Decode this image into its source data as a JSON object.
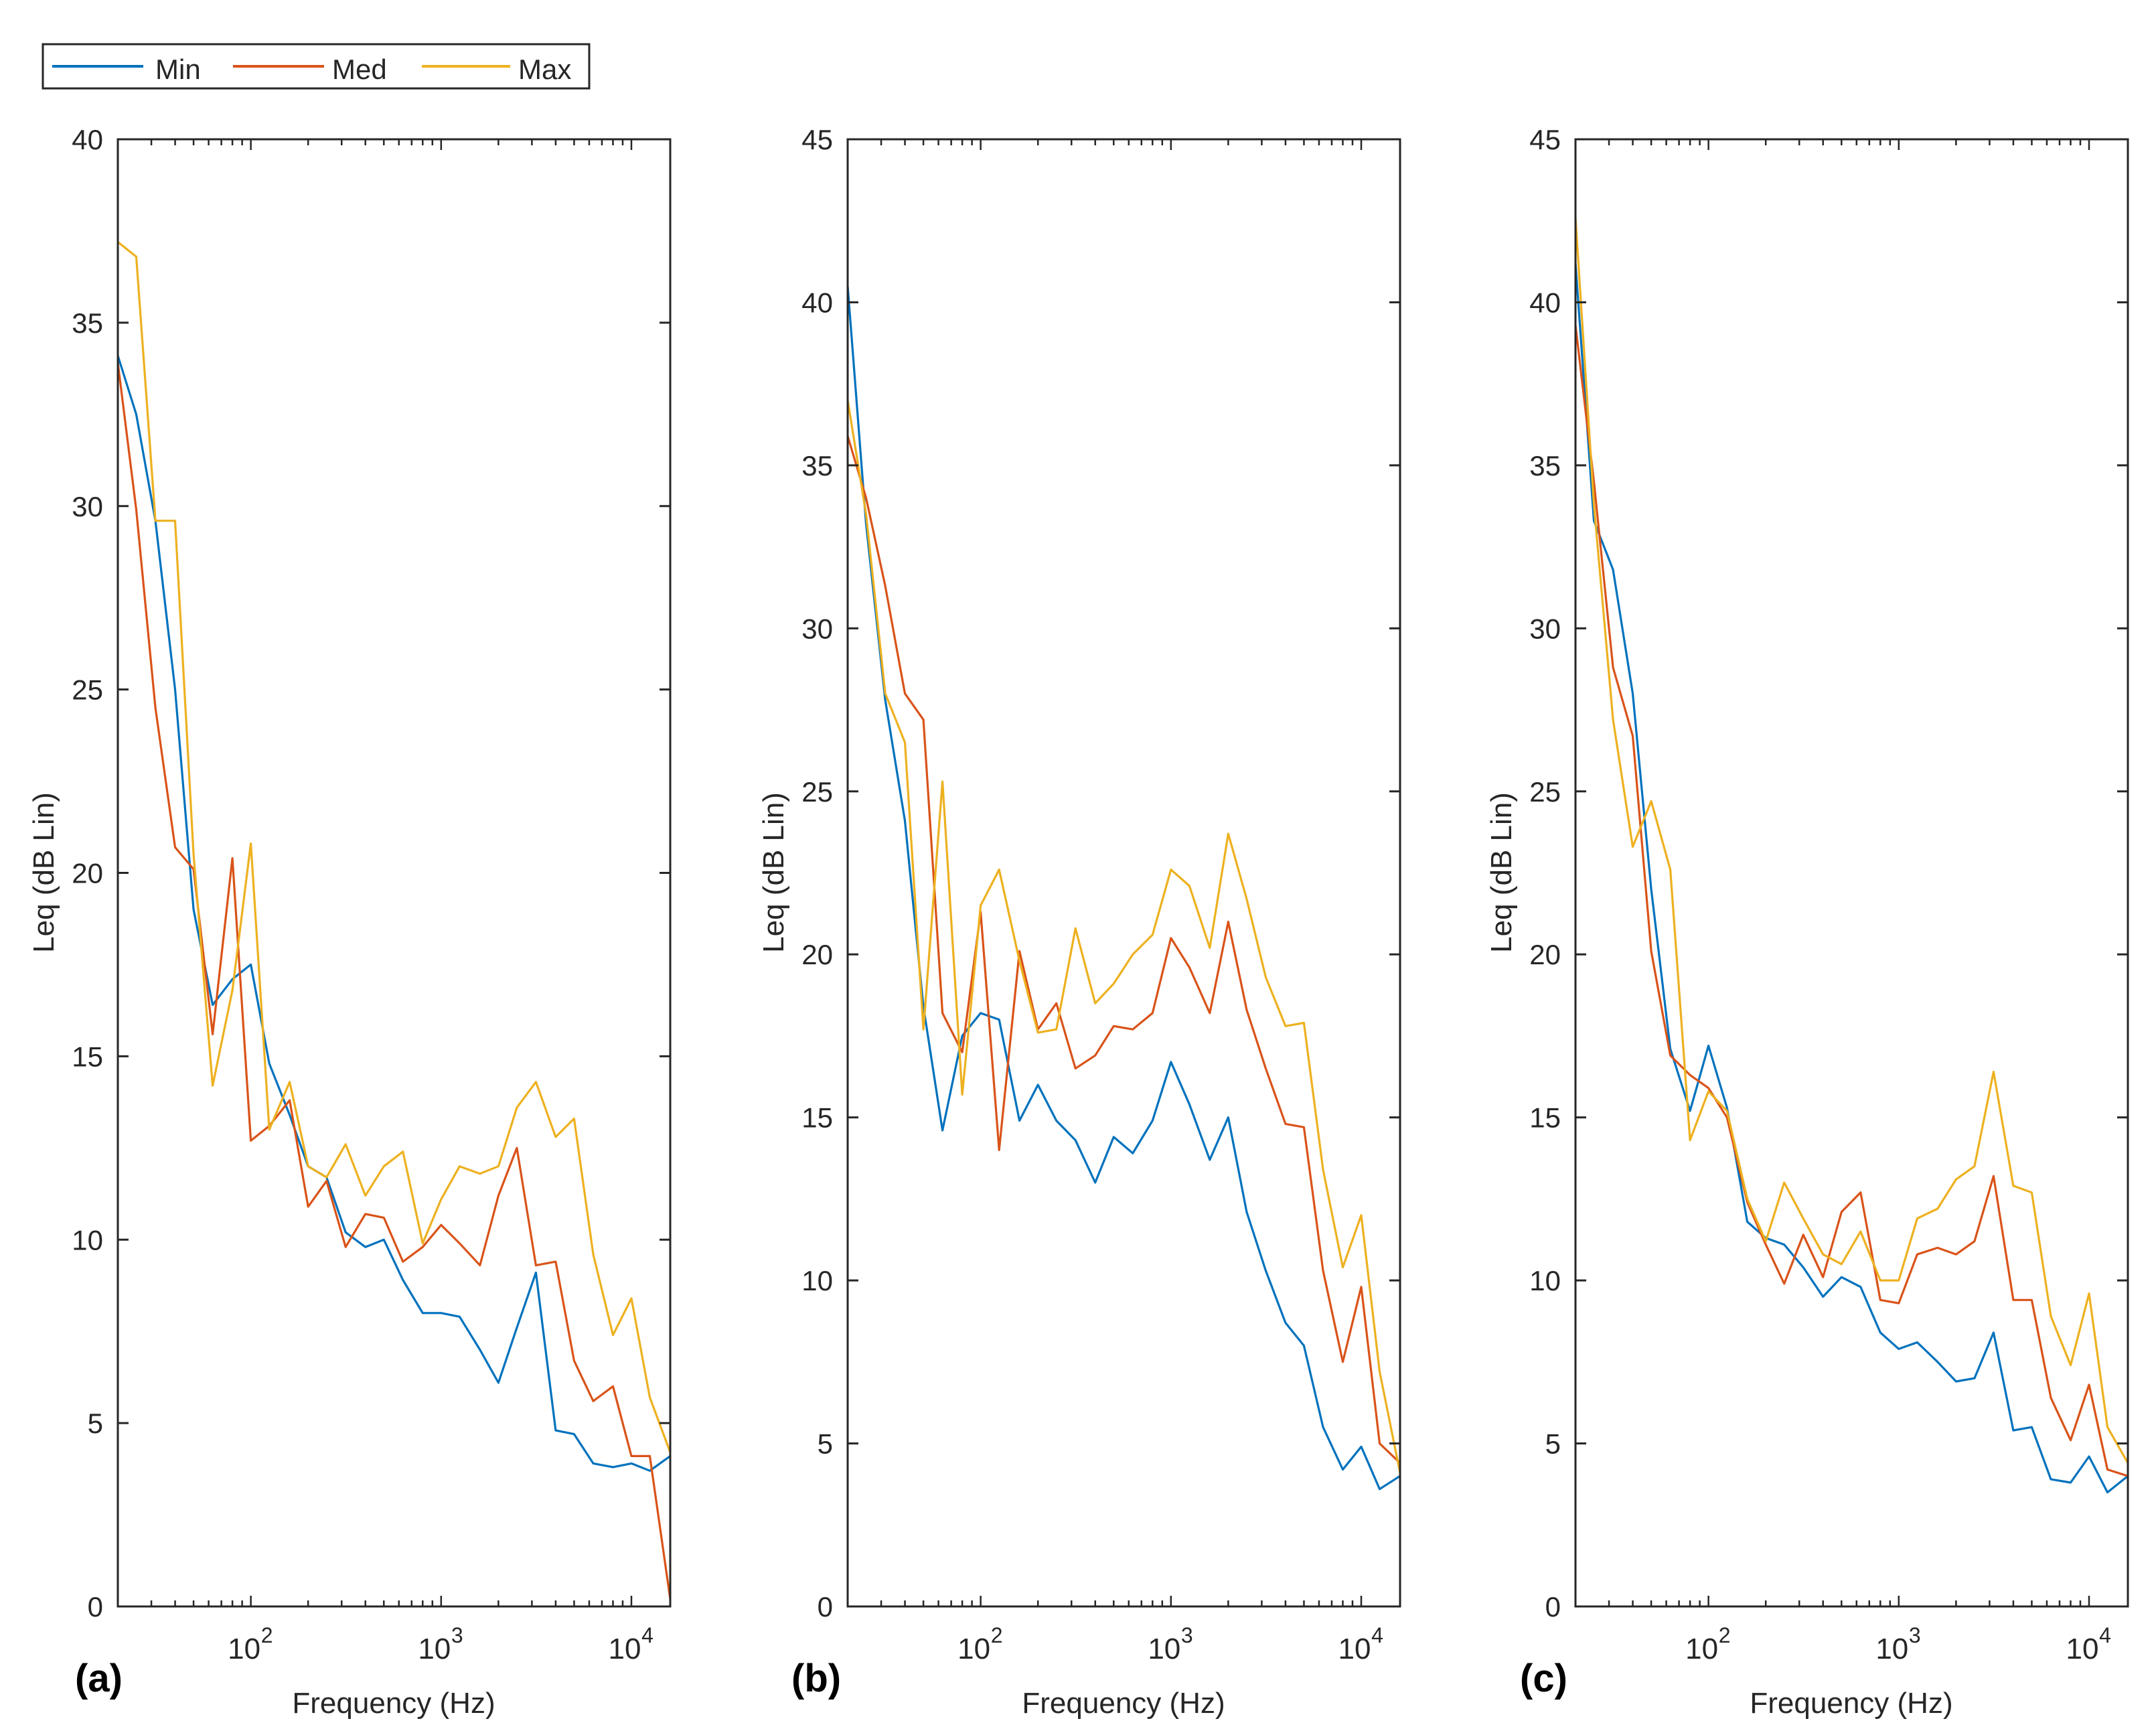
{
  "legend": {
    "entries": [
      {
        "name": "Min",
        "color": "#0072BD"
      },
      {
        "name": "Med",
        "color": "#D95319"
      },
      {
        "name": "Max",
        "color": "#EDB120"
      }
    ]
  },
  "chart_data": [
    {
      "type": "line",
      "panel_label": "(a)",
      "xlabel": "Frequency (Hz)",
      "ylabel": "Leq (dB Lin)",
      "xscale": "log",
      "xlim": [
        20,
        16000
      ],
      "ylim": [
        0,
        40
      ],
      "yticks": [
        0,
        5,
        10,
        15,
        20,
        25,
        30,
        35,
        40
      ],
      "xticks": [
        {
          "value": 100,
          "exp": "2"
        },
        {
          "value": 1000,
          "exp": "3"
        },
        {
          "value": 10000,
          "exp": "4"
        }
      ],
      "x": [
        20,
        25,
        31.5,
        40,
        50,
        63,
        80,
        100,
        125,
        160,
        200,
        250,
        315,
        400,
        500,
        630,
        800,
        1000,
        1250,
        1600,
        2000,
        2500,
        3150,
        4000,
        5000,
        6300,
        8000,
        10000,
        12500,
        16000
      ],
      "series": [
        {
          "name": "Min",
          "color": "#0072BD",
          "values": [
            34.1,
            32.5,
            29.6,
            25.0,
            19.0,
            16.4,
            17.1,
            17.5,
            14.8,
            13.4,
            12.0,
            11.7,
            10.2,
            9.8,
            10.0,
            8.9,
            8.0,
            8.0,
            7.9,
            7.0,
            6.1,
            7.6,
            9.1,
            4.8,
            4.7,
            3.9,
            3.8,
            3.9,
            3.7,
            4.1
          ]
        },
        {
          "name": "Med",
          "color": "#D95319",
          "values": [
            33.9,
            29.9,
            24.5,
            20.7,
            20.1,
            15.6,
            20.4,
            12.7,
            13.1,
            13.8,
            10.9,
            11.6,
            9.8,
            10.7,
            10.6,
            9.4,
            9.8,
            10.4,
            9.9,
            9.3,
            11.2,
            12.5,
            9.3,
            9.4,
            6.7,
            5.6,
            6.0,
            4.1,
            4.1,
            0.2
          ]
        },
        {
          "name": "Max",
          "color": "#EDB120",
          "values": [
            37.2,
            36.8,
            29.6,
            29.6,
            20.5,
            14.2,
            16.8,
            20.8,
            13.0,
            14.3,
            12.0,
            11.7,
            12.6,
            11.2,
            12.0,
            12.4,
            9.9,
            11.1,
            12.0,
            11.8,
            12.0,
            13.6,
            14.3,
            12.8,
            13.3,
            9.6,
            7.4,
            8.4,
            5.7,
            4.2
          ]
        }
      ]
    },
    {
      "type": "line",
      "panel_label": "(b)",
      "xlabel": "Frequency (Hz)",
      "ylabel": "Leq (dB Lin)",
      "xscale": "log",
      "xlim": [
        20,
        16000
      ],
      "ylim": [
        0,
        45
      ],
      "yticks": [
        0,
        5,
        10,
        15,
        20,
        25,
        30,
        35,
        40,
        45
      ],
      "xticks": [
        {
          "value": 100,
          "exp": "2"
        },
        {
          "value": 1000,
          "exp": "3"
        },
        {
          "value": 10000,
          "exp": "4"
        }
      ],
      "x": [
        20,
        25,
        31.5,
        40,
        50,
        63,
        80,
        100,
        125,
        160,
        200,
        250,
        315,
        400,
        500,
        630,
        800,
        1000,
        1250,
        1600,
        2000,
        2500,
        3150,
        4000,
        5000,
        6300,
        8000,
        10000,
        12500,
        16000
      ],
      "series": [
        {
          "name": "Min",
          "color": "#0072BD",
          "values": [
            40.5,
            33.2,
            27.8,
            24.1,
            18.4,
            14.6,
            17.5,
            18.2,
            18.0,
            14.9,
            16.0,
            14.9,
            14.3,
            13.0,
            14.4,
            13.9,
            14.9,
            16.7,
            15.4,
            13.7,
            15.0,
            12.1,
            10.3,
            8.7,
            8.0,
            5.5,
            4.2,
            4.9,
            3.6,
            4.0
          ]
        },
        {
          "name": "Med",
          "color": "#D95319",
          "values": [
            35.9,
            34.0,
            31.3,
            28.0,
            27.2,
            18.2,
            17.0,
            21.3,
            14.0,
            20.1,
            17.7,
            18.5,
            16.5,
            16.9,
            17.8,
            17.7,
            18.2,
            20.5,
            19.6,
            18.2,
            21.0,
            18.3,
            16.5,
            14.8,
            14.7,
            10.3,
            7.5,
            9.8,
            5.0,
            4.4
          ]
        },
        {
          "name": "Max",
          "color": "#EDB120",
          "values": [
            37.0,
            33.5,
            28.0,
            26.5,
            17.7,
            25.3,
            15.7,
            21.5,
            22.6,
            19.8,
            17.6,
            17.7,
            20.8,
            18.5,
            19.1,
            20.0,
            20.6,
            22.6,
            22.1,
            20.2,
            23.7,
            21.7,
            19.3,
            17.8,
            17.9,
            13.4,
            10.4,
            12.0,
            7.2,
            4.1
          ]
        }
      ]
    },
    {
      "type": "line",
      "panel_label": "(c)",
      "xlabel": "Frequency (Hz)",
      "ylabel": "Leq (dB Lin)",
      "xscale": "log",
      "xlim": [
        20,
        16000
      ],
      "ylim": [
        0,
        45
      ],
      "yticks": [
        0,
        5,
        10,
        15,
        20,
        25,
        30,
        35,
        40,
        45
      ],
      "xticks": [
        {
          "value": 100,
          "exp": "2"
        },
        {
          "value": 1000,
          "exp": "3"
        },
        {
          "value": 10000,
          "exp": "4"
        }
      ],
      "x": [
        20,
        25,
        31.5,
        40,
        50,
        63,
        80,
        100,
        125,
        160,
        200,
        250,
        315,
        400,
        500,
        630,
        800,
        1000,
        1250,
        1600,
        2000,
        2500,
        3150,
        4000,
        5000,
        6300,
        8000,
        10000,
        12500,
        16000
      ],
      "series": [
        {
          "name": "Min",
          "color": "#0072BD",
          "values": [
            41.2,
            33.3,
            31.8,
            28.0,
            22.0,
            17.1,
            15.2,
            17.2,
            15.3,
            11.8,
            11.3,
            11.1,
            10.4,
            9.5,
            10.1,
            9.8,
            8.4,
            7.9,
            8.1,
            7.5,
            6.9,
            7.0,
            8.4,
            5.4,
            5.5,
            3.9,
            3.8,
            4.6,
            3.5,
            4.0
          ]
        },
        {
          "name": "Med",
          "color": "#D95319",
          "values": [
            39.3,
            34.5,
            28.8,
            26.7,
            20.1,
            16.9,
            16.3,
            15.9,
            15.0,
            12.4,
            11.1,
            9.9,
            11.4,
            10.1,
            12.1,
            12.7,
            9.4,
            9.3,
            10.8,
            11.0,
            10.8,
            11.2,
            13.2,
            9.4,
            9.4,
            6.4,
            5.1,
            6.8,
            4.2,
            4.0
          ]
        },
        {
          "name": "Max",
          "color": "#EDB120",
          "values": [
            42.6,
            33.8,
            27.2,
            23.3,
            24.7,
            22.6,
            14.3,
            15.8,
            15.2,
            12.5,
            11.2,
            13.0,
            11.9,
            10.8,
            10.5,
            11.5,
            10.0,
            10.0,
            11.9,
            12.2,
            13.1,
            13.5,
            16.4,
            12.9,
            12.7,
            8.9,
            7.4,
            9.6,
            5.5,
            4.4
          ]
        }
      ]
    }
  ]
}
